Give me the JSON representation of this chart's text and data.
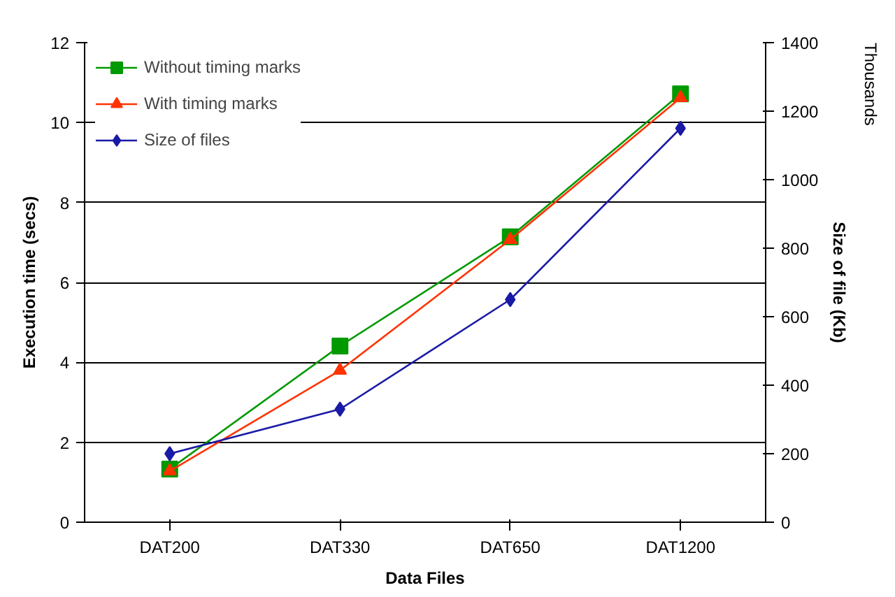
{
  "chart_data": {
    "type": "line",
    "xlabel": "Data Files",
    "ylabel": "Execution time (secs)",
    "y2label": "Size of file (Kb)",
    "annotations": [
      "Thousands"
    ],
    "categories": [
      "DAT200",
      "DAT330",
      "DAT650",
      "DAT1200"
    ],
    "series": [
      {
        "name": "Without timing marks",
        "color": "#009900",
        "marker": "square",
        "values": [
          1.33,
          4.41,
          7.14,
          10.72
        ]
      },
      {
        "name": "With timing marks",
        "color": "#ff3300",
        "marker": "triangle",
        "values": [
          1.28,
          3.8,
          7.07,
          10.62
        ]
      },
      {
        "name": "Size of files",
        "color": "#1a1aa6",
        "marker": "diamond",
        "axis": "y2",
        "values": [
          200,
          330,
          650,
          1150
        ]
      }
    ],
    "ylim": [
      0,
      12
    ],
    "yticks": [
      0,
      2,
      4,
      6,
      8,
      10,
      12
    ],
    "y2lim": [
      0,
      1400
    ],
    "y2ticks": [
      0,
      200,
      400,
      600,
      800,
      1000,
      1200,
      1400
    ],
    "grid": "y",
    "legend": "top left"
  }
}
